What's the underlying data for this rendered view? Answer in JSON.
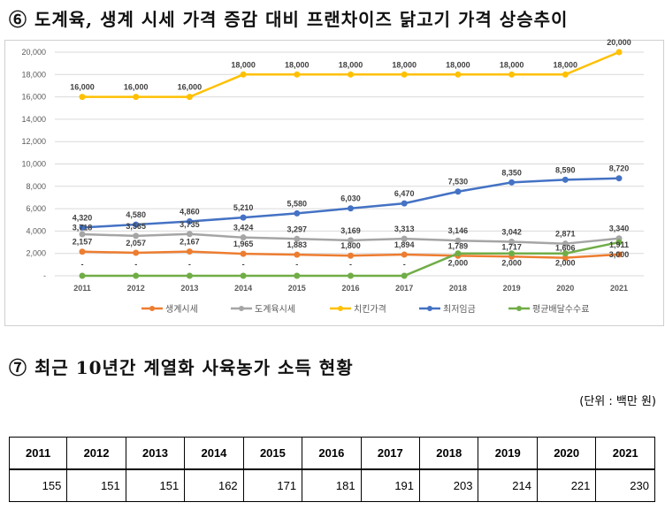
{
  "title1": "⑥ 도계육, 생계 시세 가격 증감 대비 프랜차이즈 닭고기 가격 상승추이",
  "title2": "⑦ 최근 10년간 계열화 사육농가 소득 현황",
  "unit": "(단위 : 백만 원)",
  "chart_data": {
    "type": "line",
    "x": [
      "2011",
      "2012",
      "2013",
      "2014",
      "2015",
      "2016",
      "2017",
      "2018",
      "2019",
      "2020",
      "2021"
    ],
    "ylim": [
      0,
      20000
    ],
    "yticks": [
      "-",
      "2,000",
      "4,000",
      "6,000",
      "8,000",
      "10,000",
      "12,000",
      "14,000",
      "16,000",
      "18,000",
      "20,000"
    ],
    "grid": true,
    "legend": "bottom",
    "series": [
      {
        "name": "생계시세",
        "color": "#ED7D31",
        "values": [
          2157,
          2057,
          2167,
          1965,
          1883,
          1800,
          1894,
          1789,
          1717,
          1606,
          1911
        ]
      },
      {
        "name": "도계육시세",
        "color": "#A5A5A5",
        "values": [
          3718,
          3565,
          3735,
          3424,
          3297,
          3169,
          3313,
          3146,
          3042,
          2871,
          3340
        ]
      },
      {
        "name": "치킨가격",
        "color": "#FFC000",
        "values": [
          16000,
          16000,
          16000,
          18000,
          18000,
          18000,
          18000,
          18000,
          18000,
          18000,
          20000
        ]
      },
      {
        "name": "최저임금",
        "color": "#4472C4",
        "values": [
          4320,
          4580,
          4860,
          5210,
          5580,
          6030,
          6470,
          7530,
          8350,
          8590,
          8720
        ]
      },
      {
        "name": "평균배달수수료",
        "color": "#70AD47",
        "values": [
          0,
          0,
          0,
          0,
          0,
          0,
          0,
          2000,
          2000,
          2000,
          3000
        ]
      }
    ]
  },
  "table": {
    "years": [
      "2011",
      "2012",
      "2013",
      "2014",
      "2015",
      "2016",
      "2017",
      "2018",
      "2019",
      "2020",
      "2021"
    ],
    "values": [
      "155",
      "151",
      "151",
      "162",
      "171",
      "181",
      "191",
      "203",
      "214",
      "221",
      "230"
    ]
  }
}
